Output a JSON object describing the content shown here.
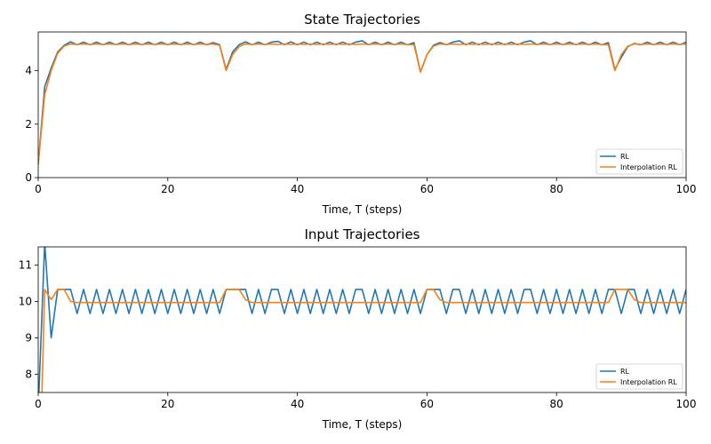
{
  "chart_data": [
    {
      "type": "line",
      "title": "State Trajectories",
      "xlabel": "Time, T (steps)",
      "ylabel": "",
      "xlim": [
        0,
        100
      ],
      "ylim": [
        0,
        5.45
      ],
      "xticks": [
        0,
        20,
        40,
        60,
        80,
        100
      ],
      "yticks": [
        0,
        2,
        4
      ],
      "legend": {
        "position": "lower-right"
      },
      "grid": false,
      "series": [
        {
          "name": "RL",
          "color": "#1f77b4",
          "x": [
            0,
            1,
            2,
            3,
            4,
            5,
            6,
            7,
            8,
            9,
            10,
            11,
            12,
            13,
            14,
            15,
            16,
            17,
            18,
            19,
            20,
            21,
            22,
            23,
            24,
            25,
            26,
            27,
            28,
            29,
            30,
            31,
            32,
            33,
            34,
            35,
            36,
            37,
            38,
            39,
            40,
            41,
            42,
            43,
            44,
            45,
            46,
            47,
            48,
            49,
            50,
            51,
            52,
            53,
            54,
            55,
            56,
            57,
            58,
            59,
            60,
            61,
            62,
            63,
            64,
            65,
            66,
            67,
            68,
            69,
            70,
            71,
            72,
            73,
            74,
            75,
            76,
            77,
            78,
            79,
            80,
            81,
            82,
            83,
            84,
            85,
            86,
            87,
            88,
            89,
            90,
            91,
            92,
            93,
            94,
            95,
            96,
            97,
            98,
            99,
            100
          ],
          "y": [
            0.5,
            3.4,
            4.1,
            4.7,
            4.95,
            5.08,
            4.97,
            5.07,
            4.97,
            5.07,
            4.97,
            5.07,
            4.97,
            5.07,
            4.97,
            5.07,
            4.97,
            5.07,
            4.97,
            5.07,
            4.97,
            5.07,
            4.97,
            5.07,
            4.97,
            5.07,
            4.97,
            5.05,
            4.97,
            4.05,
            4.7,
            4.97,
            5.08,
            4.97,
            5.07,
            4.97,
            5.07,
            5.1,
            4.97,
            5.08,
            4.97,
            5.07,
            4.97,
            5.07,
            4.97,
            5.07,
            4.97,
            5.07,
            4.97,
            5.07,
            5.12,
            4.97,
            5.07,
            4.97,
            5.07,
            4.97,
            5.07,
            4.97,
            5.05,
            3.95,
            4.6,
            4.95,
            5.05,
            4.97,
            5.07,
            5.12,
            4.97,
            5.07,
            4.97,
            5.07,
            4.97,
            5.07,
            4.97,
            5.07,
            4.97,
            5.07,
            5.12,
            4.97,
            5.07,
            4.97,
            5.07,
            4.97,
            5.07,
            4.97,
            5.07,
            4.97,
            5.07,
            4.97,
            5.05,
            4.05,
            4.5,
            4.9,
            5.02,
            4.97,
            5.07,
            4.97,
            5.07,
            4.97,
            5.07,
            4.97,
            5.07
          ]
        },
        {
          "name": "Interpolation RL",
          "color": "#ff7f0e",
          "x": [
            0,
            1,
            2,
            3,
            4,
            5,
            6,
            7,
            8,
            9,
            10,
            11,
            12,
            13,
            14,
            15,
            16,
            17,
            18,
            19,
            20,
            21,
            22,
            23,
            24,
            25,
            26,
            27,
            28,
            29,
            30,
            31,
            32,
            33,
            34,
            35,
            36,
            37,
            38,
            39,
            40,
            41,
            42,
            43,
            44,
            45,
            46,
            47,
            48,
            49,
            50,
            51,
            52,
            53,
            54,
            55,
            56,
            57,
            58,
            59,
            60,
            61,
            62,
            63,
            64,
            65,
            66,
            67,
            68,
            69,
            70,
            71,
            72,
            73,
            74,
            75,
            76,
            77,
            78,
            79,
            80,
            81,
            82,
            83,
            84,
            85,
            86,
            87,
            88,
            89,
            90,
            91,
            92,
            93,
            94,
            95,
            96,
            97,
            98,
            99,
            100
          ],
          "y": [
            0.5,
            3.1,
            4.0,
            4.65,
            4.92,
            5.0,
            4.98,
            5.0,
            4.98,
            5.0,
            4.98,
            5.0,
            4.98,
            5.0,
            4.98,
            5.0,
            4.98,
            5.0,
            4.98,
            5.0,
            4.98,
            5.0,
            4.98,
            5.0,
            4.98,
            5.0,
            4.98,
            5.0,
            4.95,
            4.0,
            4.6,
            4.9,
            5.0,
            4.98,
            5.0,
            4.98,
            5.0,
            4.98,
            5.0,
            4.98,
            5.0,
            4.98,
            5.0,
            4.98,
            5.0,
            4.98,
            5.0,
            4.98,
            5.0,
            4.98,
            5.0,
            4.98,
            5.0,
            4.98,
            5.0,
            4.98,
            5.0,
            4.98,
            4.97,
            3.95,
            4.6,
            4.92,
            5.0,
            4.98,
            5.0,
            4.98,
            5.0,
            4.98,
            5.0,
            4.98,
            5.0,
            4.98,
            5.0,
            4.98,
            5.0,
            4.98,
            5.0,
            4.98,
            5.0,
            4.98,
            5.0,
            4.98,
            5.0,
            4.98,
            5.0,
            4.98,
            5.0,
            4.98,
            4.97,
            4.0,
            4.6,
            4.92,
            5.0,
            4.98,
            5.0,
            4.98,
            5.0,
            4.98,
            5.0,
            4.98,
            5.0
          ]
        }
      ]
    },
    {
      "type": "line",
      "title": "Input Trajectories",
      "xlabel": "Time, T (steps)",
      "ylabel": "",
      "xlim": [
        0,
        100
      ],
      "ylim": [
        7.5,
        11.5
      ],
      "xticks": [
        0,
        20,
        40,
        60,
        80,
        100
      ],
      "yticks": [
        8,
        9,
        10,
        11
      ],
      "legend": {
        "position": "lower-right"
      },
      "grid": false,
      "series": [
        {
          "name": "RL",
          "color": "#1f77b4",
          "x": [
            0,
            1,
            2,
            3,
            4,
            5,
            6,
            7,
            8,
            9,
            10,
            11,
            12,
            13,
            14,
            15,
            16,
            17,
            18,
            19,
            20,
            21,
            22,
            23,
            24,
            25,
            26,
            27,
            28,
            29,
            30,
            31,
            32,
            33,
            34,
            35,
            36,
            37,
            38,
            39,
            40,
            41,
            42,
            43,
            44,
            45,
            46,
            47,
            48,
            49,
            50,
            51,
            52,
            53,
            54,
            55,
            56,
            57,
            58,
            59,
            60,
            61,
            62,
            63,
            64,
            65,
            66,
            67,
            68,
            69,
            70,
            71,
            72,
            73,
            74,
            75,
            76,
            77,
            78,
            79,
            80,
            81,
            82,
            83,
            84,
            85,
            86,
            87,
            88,
            89,
            90,
            91,
            92,
            93,
            94,
            95,
            96,
            97,
            98,
            99,
            100
          ],
          "y": [
            7.0,
            11.6,
            9.0,
            10.33,
            10.33,
            10.33,
            9.67,
            10.33,
            9.67,
            10.33,
            9.67,
            10.33,
            9.67,
            10.33,
            9.67,
            10.33,
            9.67,
            10.33,
            9.67,
            10.33,
            9.67,
            10.33,
            9.67,
            10.33,
            9.67,
            10.33,
            9.67,
            10.33,
            9.67,
            10.33,
            10.33,
            10.33,
            10.33,
            9.67,
            10.33,
            9.67,
            10.33,
            10.33,
            9.67,
            10.33,
            9.67,
            10.33,
            9.67,
            10.33,
            9.67,
            10.33,
            9.67,
            10.33,
            9.67,
            10.33,
            10.33,
            9.67,
            10.33,
            9.67,
            10.33,
            9.67,
            10.33,
            9.67,
            10.33,
            9.67,
            10.33,
            10.33,
            10.33,
            9.67,
            10.33,
            10.33,
            9.67,
            10.33,
            9.67,
            10.33,
            9.67,
            10.33,
            9.67,
            10.33,
            9.67,
            10.33,
            10.33,
            9.67,
            10.33,
            9.67,
            10.33,
            9.67,
            10.33,
            9.67,
            10.33,
            9.67,
            10.33,
            9.67,
            10.33,
            10.33,
            9.67,
            10.33,
            10.33,
            9.67,
            10.33,
            9.67,
            10.33,
            9.67,
            10.33,
            9.67,
            10.33
          ]
        },
        {
          "name": "Interpolation RL",
          "color": "#ff7f0e",
          "x": [
            0,
            0.5,
            1,
            2,
            3,
            4,
            5,
            6,
            7,
            8,
            9,
            10,
            11,
            12,
            13,
            14,
            15,
            16,
            17,
            18,
            19,
            20,
            21,
            22,
            23,
            24,
            25,
            26,
            27,
            28,
            29,
            30,
            31,
            32,
            33,
            34,
            35,
            36,
            37,
            38,
            39,
            40,
            41,
            42,
            43,
            44,
            45,
            46,
            47,
            48,
            49,
            50,
            51,
            52,
            53,
            54,
            55,
            56,
            57,
            58,
            59,
            60,
            61,
            62,
            63,
            64,
            65,
            66,
            67,
            68,
            69,
            70,
            71,
            72,
            73,
            74,
            75,
            76,
            77,
            78,
            79,
            80,
            81,
            82,
            83,
            84,
            85,
            86,
            87,
            88,
            89,
            90,
            91,
            92,
            93,
            94,
            95,
            96,
            97,
            98,
            99,
            100
          ],
          "y": [
            7.0,
            7.0,
            10.33,
            10.05,
            10.33,
            10.33,
            10.0,
            9.97,
            9.97,
            9.97,
            9.97,
            9.97,
            9.97,
            9.97,
            9.97,
            9.97,
            9.97,
            9.97,
            9.97,
            9.97,
            9.97,
            9.97,
            9.97,
            9.97,
            9.97,
            9.97,
            9.97,
            9.97,
            9.97,
            9.97,
            10.33,
            10.33,
            10.33,
            10.05,
            9.97,
            9.97,
            9.97,
            9.97,
            9.97,
            9.97,
            9.97,
            9.97,
            9.97,
            9.97,
            9.97,
            9.97,
            9.97,
            9.97,
            9.97,
            9.97,
            9.97,
            9.97,
            9.97,
            9.97,
            9.97,
            9.97,
            9.97,
            9.97,
            9.97,
            9.97,
            9.97,
            10.33,
            10.33,
            10.05,
            9.97,
            9.97,
            9.97,
            9.97,
            9.97,
            9.97,
            9.97,
            9.97,
            9.97,
            9.97,
            9.97,
            9.97,
            9.97,
            9.97,
            9.97,
            9.97,
            9.97,
            9.97,
            9.97,
            9.97,
            9.97,
            9.97,
            9.97,
            9.97,
            9.97,
            9.97,
            10.33,
            10.33,
            10.33,
            10.05,
            9.97,
            9.97,
            9.97,
            9.97,
            9.97,
            9.97,
            9.97,
            9.97
          ]
        }
      ]
    }
  ]
}
